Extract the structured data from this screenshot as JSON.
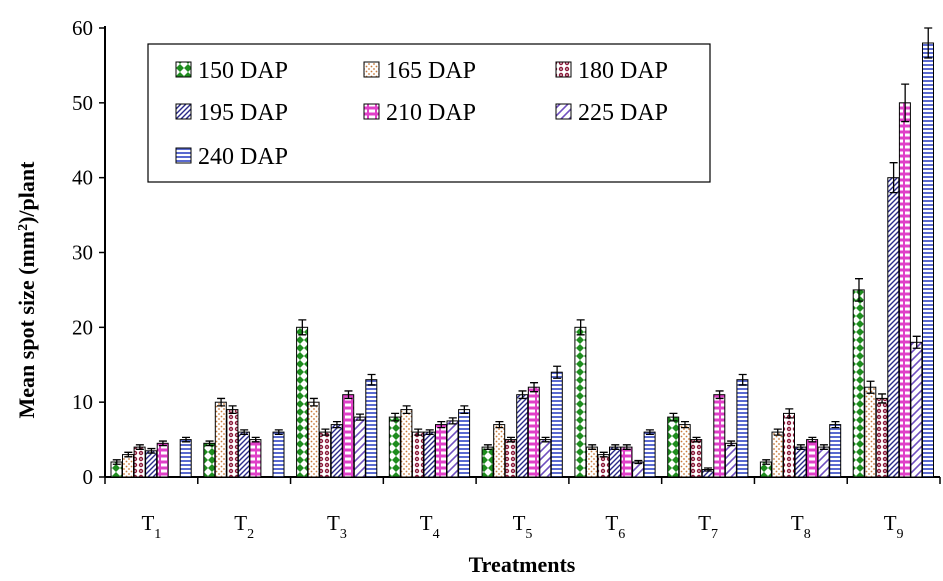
{
  "chart_data": {
    "type": "bar",
    "title": "",
    "xlabel": "Treatments",
    "ylabel_prefix": "Mean spot size (mm",
    "ylabel_superscript": "2",
    "ylabel_suffix": ")/plant",
    "ylim": [
      0,
      60
    ],
    "yticks": [
      "0",
      "10",
      "20",
      "30",
      "40",
      "50",
      "60"
    ],
    "grid": false,
    "legend_position": "top-left",
    "categories": [
      {
        "base": "T",
        "sub": "1"
      },
      {
        "base": "T",
        "sub": "2"
      },
      {
        "base": "T",
        "sub": "3"
      },
      {
        "base": "T",
        "sub": "4"
      },
      {
        "base": "T",
        "sub": "5"
      },
      {
        "base": "T",
        "sub": "6"
      },
      {
        "base": "T",
        "sub": "7"
      },
      {
        "base": "T",
        "sub": "8"
      },
      {
        "base": "T",
        "sub": "9"
      }
    ],
    "series": [
      {
        "name": "150 DAP",
        "color": "#1e8c1e",
        "pattern": "diamond-check",
        "values": [
          2,
          4.5,
          20,
          8,
          4,
          20,
          8,
          2,
          25
        ],
        "errors": [
          0.3,
          0.3,
          1.0,
          0.5,
          0.3,
          1.0,
          0.5,
          0.3,
          1.5
        ]
      },
      {
        "name": "165 DAP",
        "color": "#c87a3a",
        "pattern": "dots",
        "values": [
          3,
          10,
          10,
          9,
          7,
          4,
          7,
          6,
          12
        ],
        "errors": [
          0.3,
          0.5,
          0.5,
          0.5,
          0.4,
          0.3,
          0.4,
          0.4,
          0.8
        ]
      },
      {
        "name": "180 DAP",
        "color": "#8b1a3a",
        "pattern": "circles",
        "values": [
          4,
          9,
          6,
          6,
          5,
          3,
          5,
          8.5,
          10.5
        ],
        "errors": [
          0.3,
          0.5,
          0.4,
          0.4,
          0.3,
          0.3,
          0.3,
          0.6,
          0.6
        ]
      },
      {
        "name": "195 DAP",
        "color": "#2a2a8a",
        "pattern": "diag-dense",
        "values": [
          3.5,
          6,
          7,
          6,
          11,
          4,
          1,
          4,
          40
        ],
        "errors": [
          0.3,
          0.3,
          0.4,
          0.3,
          0.5,
          0.3,
          0.2,
          0.3,
          2.0
        ]
      },
      {
        "name": "210 DAP",
        "color": "#e040c8",
        "pattern": "bricks",
        "values": [
          4.5,
          5,
          11,
          7,
          12,
          4,
          11,
          5,
          50
        ],
        "errors": [
          0.3,
          0.3,
          0.5,
          0.4,
          0.6,
          0.3,
          0.5,
          0.3,
          2.5
        ]
      },
      {
        "name": "225 DAP",
        "color": "#7050c0",
        "pattern": "diag-wide",
        "values": [
          0,
          0,
          8,
          7.5,
          5,
          2,
          4.5,
          4,
          18
        ],
        "errors": [
          0,
          0,
          0.4,
          0.4,
          0.3,
          0.2,
          0.3,
          0.3,
          0.8
        ]
      },
      {
        "name": "240 DAP",
        "color": "#5a6ad0",
        "pattern": "hstripes",
        "values": [
          5,
          6,
          13,
          9,
          14,
          6,
          13,
          7,
          58
        ],
        "errors": [
          0.3,
          0.3,
          0.7,
          0.5,
          0.8,
          0.3,
          0.7,
          0.4,
          2.0
        ]
      }
    ]
  }
}
